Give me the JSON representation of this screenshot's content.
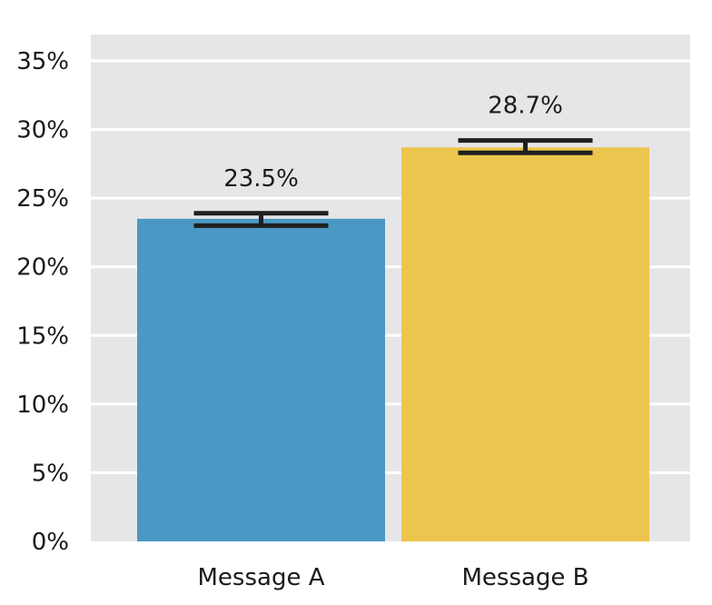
{
  "chart_data": {
    "type": "bar",
    "categories": [
      "Message A",
      "Message B"
    ],
    "values": [
      23.5,
      28.7
    ],
    "data_labels": [
      "23.5%",
      "28.7%"
    ],
    "error_bars": [
      {
        "low": 23.0,
        "high": 23.9
      },
      {
        "low": 28.3,
        "high": 29.2
      }
    ],
    "ylim": [
      0,
      36
    ],
    "yticks": [
      0,
      5,
      10,
      15,
      20,
      25,
      30,
      35
    ],
    "ytick_labels": [
      "0%",
      "5%",
      "10%",
      "15%",
      "20%",
      "25%",
      "30%",
      "35%"
    ],
    "title": "",
    "xlabel": "",
    "ylabel": "",
    "grid": true,
    "colors": {
      "background": "#e6e6e9",
      "gridline": "#ffffff",
      "bars": [
        "#4a98c3",
        "#ecc54f"
      ],
      "error_bar": "#1f1f1f"
    }
  }
}
